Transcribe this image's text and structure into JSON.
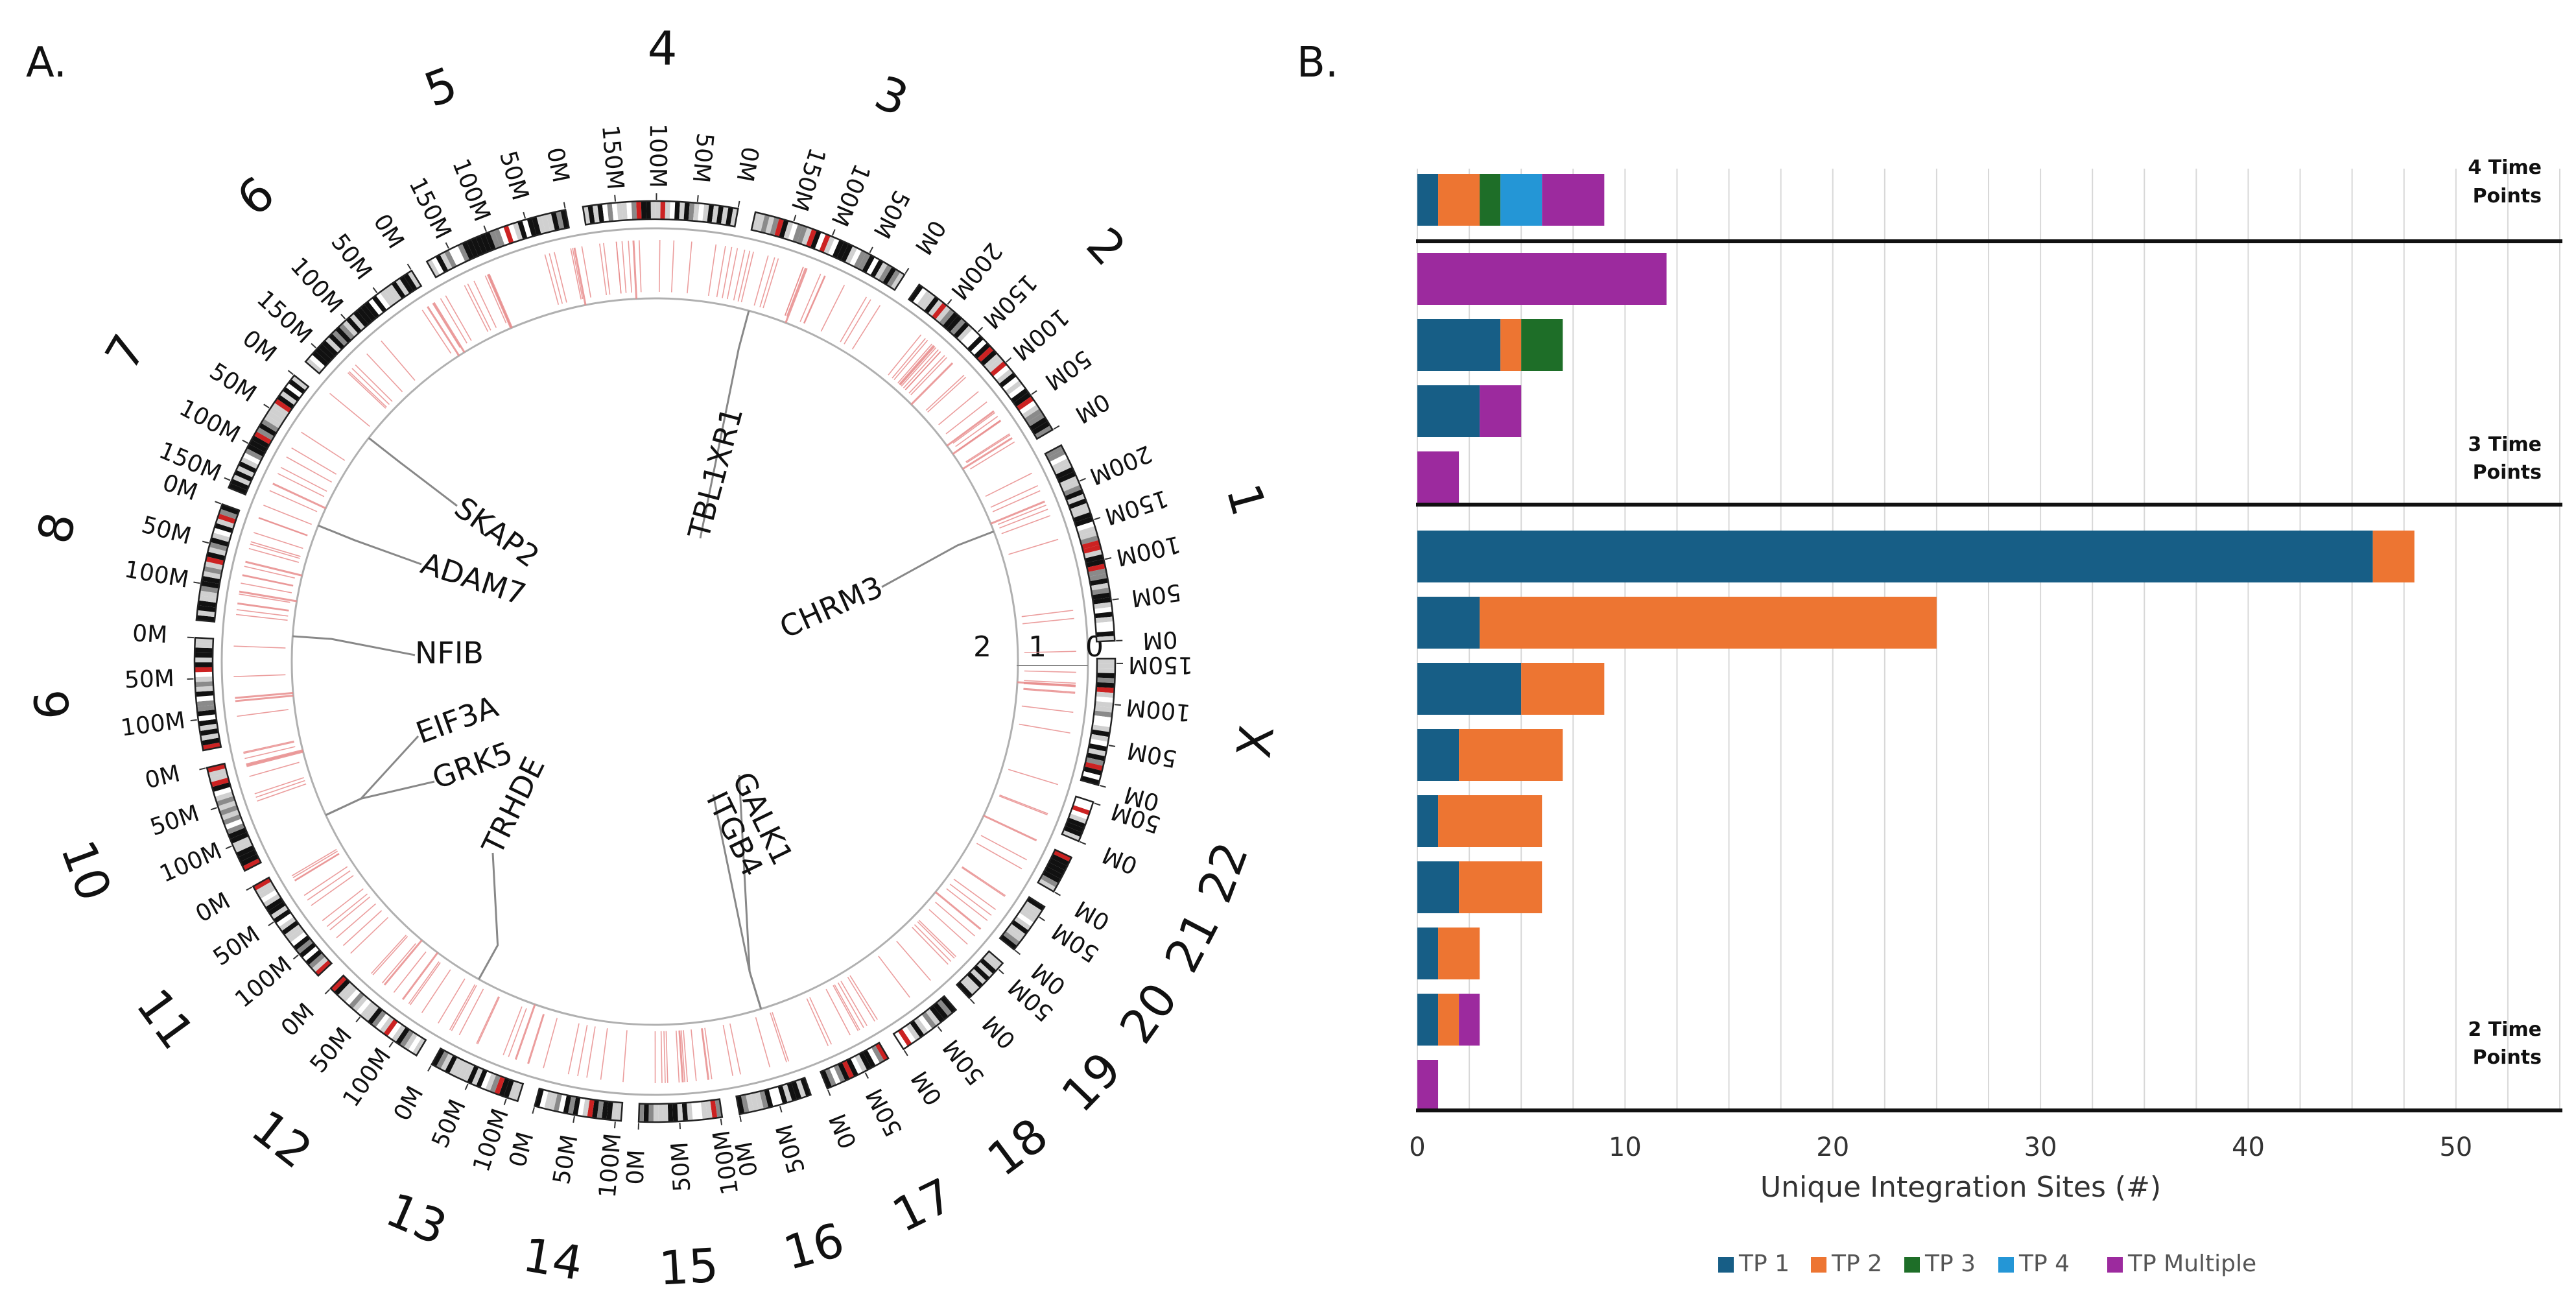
{
  "figure": {
    "panel_a_label": "A.",
    "panel_b_label": "B."
  },
  "colors": {
    "tp1": "#175e86",
    "tp2": "#ed7532",
    "tp3": "#1e6e28",
    "tp4": "#2496d6",
    "tpm": "#9c2a9e",
    "site_line": "#e88c8c",
    "ring": "#b0b0b0",
    "band_dark": "#111111",
    "band_grey": "#8a8a8a",
    "band_light": "#d0d0d0",
    "band_red": "#cc2222"
  },
  "chart_data": [
    {
      "type": "circos",
      "panel": "A.",
      "chromosomes": [
        {
          "name": "1",
          "length_mb": 249,
          "ticks": [
            "0M",
            "50M",
            "100M",
            "150M",
            "200M"
          ]
        },
        {
          "name": "2",
          "length_mb": 242,
          "ticks": [
            "0M",
            "50M",
            "100M",
            "150M",
            "200M"
          ]
        },
        {
          "name": "3",
          "length_mb": 198,
          "ticks": [
            "0M",
            "50M",
            "100M",
            "150M"
          ]
        },
        {
          "name": "4",
          "length_mb": 190,
          "ticks": [
            "0M",
            "50M",
            "100M",
            "150M"
          ]
        },
        {
          "name": "5",
          "length_mb": 181,
          "ticks": [
            "0M",
            "50M",
            "100M",
            "150M"
          ]
        },
        {
          "name": "6",
          "length_mb": 171,
          "ticks": [
            "0M",
            "50M",
            "100M",
            "150M"
          ]
        },
        {
          "name": "7",
          "length_mb": 159,
          "ticks": [
            "0M",
            "50M",
            "100M",
            "150M"
          ]
        },
        {
          "name": "8",
          "length_mb": 145,
          "ticks": [
            "0M",
            "50M",
            "100M"
          ]
        },
        {
          "name": "9",
          "length_mb": 138,
          "ticks": [
            "0M",
            "50M",
            "100M"
          ]
        },
        {
          "name": "10",
          "length_mb": 134,
          "ticks": [
            "0M",
            "50M",
            "100M"
          ]
        },
        {
          "name": "11",
          "length_mb": 135,
          "ticks": [
            "0M",
            "50M",
            "100M"
          ]
        },
        {
          "name": "12",
          "length_mb": 133,
          "ticks": [
            "0M",
            "50M",
            "100M"
          ]
        },
        {
          "name": "13",
          "length_mb": 114,
          "ticks": [
            "0M",
            "50M",
            "100M"
          ]
        },
        {
          "name": "14",
          "length_mb": 107,
          "ticks": [
            "0M",
            "50M",
            "100M"
          ]
        },
        {
          "name": "15",
          "length_mb": 102,
          "ticks": [
            "0M",
            "50M",
            "100M"
          ]
        },
        {
          "name": "16",
          "length_mb": 90,
          "ticks": [
            "0M",
            "50M"
          ]
        },
        {
          "name": "17",
          "length_mb": 83,
          "ticks": [
            "0M",
            "50M"
          ]
        },
        {
          "name": "18",
          "length_mb": 80,
          "ticks": [
            "0M",
            "50M"
          ]
        },
        {
          "name": "19",
          "length_mb": 59,
          "ticks": [
            "0M",
            "50M"
          ]
        },
        {
          "name": "20",
          "length_mb": 64,
          "ticks": [
            "0M",
            "50M"
          ]
        },
        {
          "name": "21",
          "length_mb": 47,
          "ticks": [
            "0M"
          ]
        },
        {
          "name": "22",
          "length_mb": 51,
          "ticks": [
            "0M",
            "50M"
          ]
        },
        {
          "name": "X",
          "length_mb": 156,
          "ticks": [
            "0M",
            "50M",
            "100M",
            "150M"
          ]
        }
      ],
      "radial_axis_labels": [
        "0",
        "1",
        "2"
      ],
      "genes": [
        {
          "name": "TBL1XR1",
          "chrom": "3",
          "pos_mb": 177
        },
        {
          "name": "CHRM3",
          "chrom": "1",
          "pos_mb": 239
        },
        {
          "name": "SKAP2",
          "chrom": "7",
          "pos_mb": 27
        },
        {
          "name": "ADAM7",
          "chrom": "8",
          "pos_mb": 24
        },
        {
          "name": "NFIB",
          "chrom": "9",
          "pos_mb": 14
        },
        {
          "name": "EIF3A",
          "chrom": "10",
          "pos_mb": 120
        },
        {
          "name": "GRK5",
          "chrom": "10",
          "pos_mb": 121
        },
        {
          "name": "TRHDE",
          "chrom": "12",
          "pos_mb": 72
        },
        {
          "name": "GALK1",
          "chrom": "17",
          "pos_mb": 75
        },
        {
          "name": "ITGB4",
          "chrom": "17",
          "pos_mb": 75
        }
      ]
    },
    {
      "type": "bar",
      "panel": "B.",
      "orientation": "horizontal",
      "stacked": true,
      "xlabel": "Unique Integration Sites (#)",
      "xlim": [
        0,
        55
      ],
      "xticks": [
        0,
        10,
        20,
        30,
        40,
        50
      ],
      "series_names": [
        "TP 1",
        "TP 2",
        "TP 3",
        "TP 4",
        "TP Multiple"
      ],
      "groups": [
        {
          "label_line1": "4 Time",
          "label_line2": "Points",
          "rows": [
            [
              1,
              2,
              1,
              2,
              3
            ]
          ]
        },
        {
          "label_line1": "3 Time",
          "label_line2": "Points",
          "rows": [
            [
              0,
              0,
              0,
              0,
              12
            ],
            [
              4,
              1,
              2,
              0,
              0
            ],
            [
              3,
              0,
              0,
              0,
              2
            ],
            [
              0,
              0,
              0,
              0,
              2
            ]
          ]
        },
        {
          "label_line1": "2 Time",
          "label_line2": "Points",
          "rows": [
            [
              46,
              2,
              0,
              0,
              0
            ],
            [
              3,
              22,
              0,
              0,
              0
            ],
            [
              5,
              4,
              0,
              0,
              0
            ],
            [
              2,
              5,
              0,
              0,
              0
            ],
            [
              1,
              5,
              0,
              0,
              0
            ],
            [
              2,
              4,
              0,
              0,
              0
            ],
            [
              1,
              2,
              0,
              0,
              0
            ],
            [
              1,
              1,
              0,
              0,
              1
            ],
            [
              0,
              0,
              0,
              0,
              1
            ]
          ]
        }
      ]
    }
  ]
}
